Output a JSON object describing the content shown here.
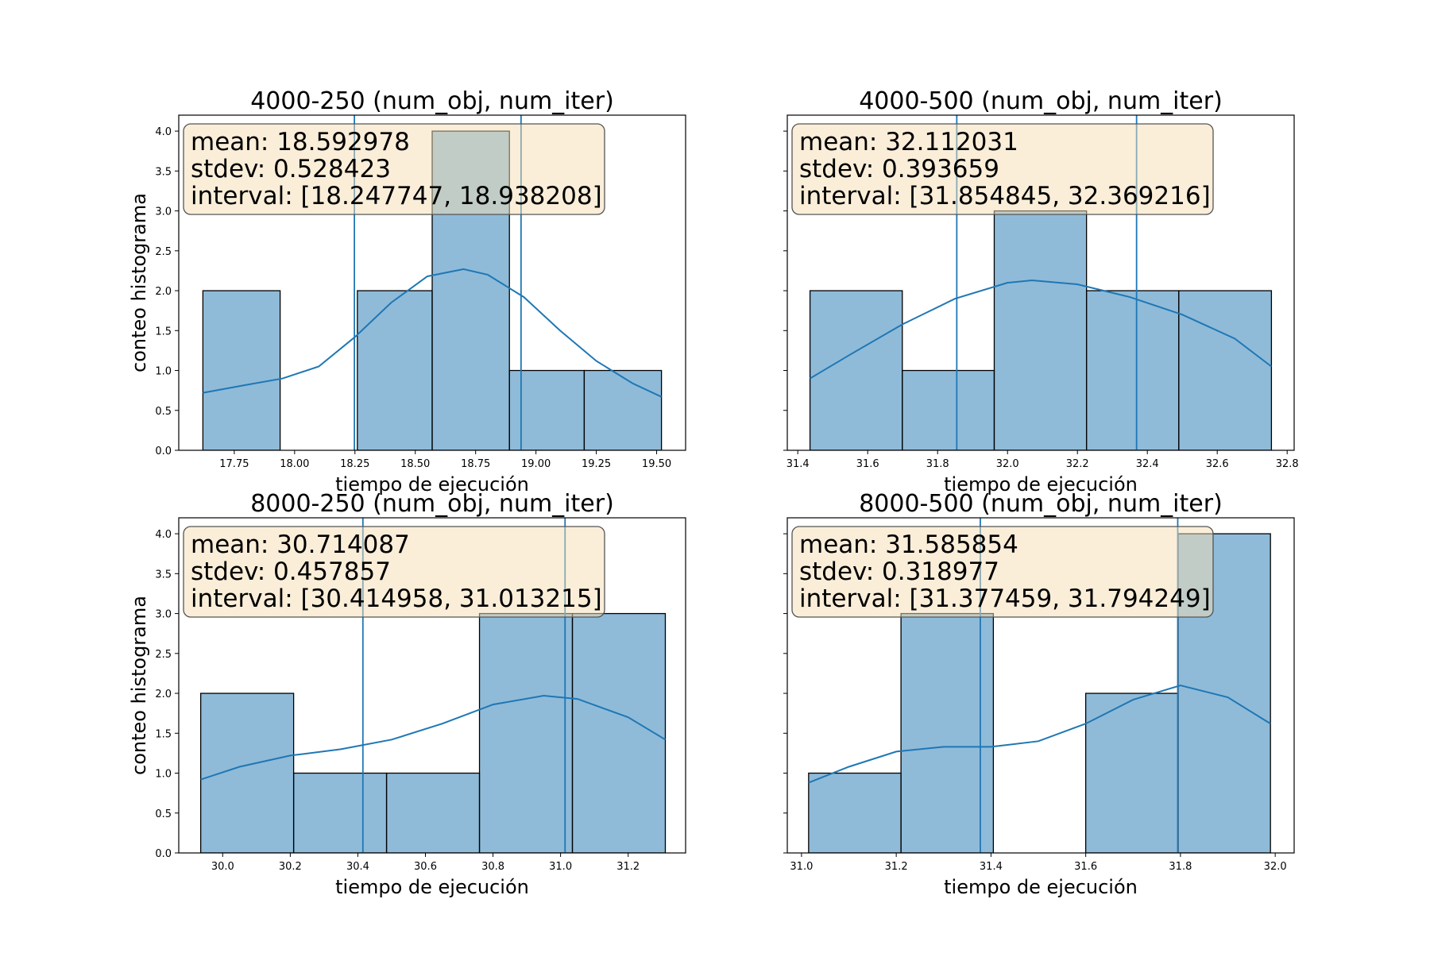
{
  "figure": {
    "shared_ylabel": "conteo histograma",
    "shared_xlabel": "tiempo de ejecución"
  },
  "colors": {
    "bar_fill": "#1f77b4",
    "bar_fill_alpha": 0.5,
    "bar_edge": "#000000",
    "kde_line": "#1f77b4",
    "interval_line": "#1f77b4",
    "stats_box_fill": "#f5deb3",
    "stats_box_alpha": 0.5,
    "stats_box_edge": "#555555"
  },
  "chart_data": [
    {
      "type": "bar",
      "title": "4000-250 (num_obj, num_iter)",
      "xlabel": "tiempo de ejecución",
      "ylabel": "conteo histograma",
      "xlim": [
        17.52,
        19.62
      ],
      "ylim": [
        0,
        4.2
      ],
      "xticks": [
        17.75,
        18.0,
        18.25,
        18.5,
        18.75,
        19.0,
        19.25,
        19.5
      ],
      "xtick_labels": [
        "17.75",
        "18.00",
        "18.25",
        "18.50",
        "18.75",
        "19.00",
        "19.25",
        "19.50"
      ],
      "yticks": [
        0.0,
        0.5,
        1.0,
        1.5,
        2.0,
        2.5,
        3.0,
        3.5,
        4.0
      ],
      "ytick_labels": [
        "0.0",
        "0.5",
        "1.0",
        "1.5",
        "2.0",
        "2.5",
        "3.0",
        "3.5",
        "4.0"
      ],
      "show_ytick_labels": true,
      "bins": [
        {
          "x0": 17.62,
          "x1": 17.94,
          "count": 2
        },
        {
          "x0": 17.94,
          "x1": 18.26,
          "count": 0
        },
        {
          "x0": 18.26,
          "x1": 18.57,
          "count": 2
        },
        {
          "x0": 18.57,
          "x1": 18.89,
          "count": 4
        },
        {
          "x0": 18.89,
          "x1": 19.2,
          "count": 1
        },
        {
          "x0": 19.2,
          "x1": 19.52,
          "count": 1
        }
      ],
      "kde": {
        "x": [
          17.62,
          17.8,
          17.95,
          18.1,
          18.25,
          18.4,
          18.55,
          18.7,
          18.8,
          18.95,
          19.1,
          19.25,
          19.4,
          19.52
        ],
        "y": [
          0.72,
          0.82,
          0.9,
          1.05,
          1.42,
          1.85,
          2.18,
          2.27,
          2.2,
          1.92,
          1.5,
          1.12,
          0.84,
          0.67
        ]
      },
      "interval_lines": [
        18.247747,
        18.938208
      ],
      "stats": {
        "mean_line": "mean: 18.592978",
        "stdev_line": "stdev: 0.528423",
        "interval_line": "interval: [18.247747, 18.938208]"
      }
    },
    {
      "type": "bar",
      "title": "4000-500 (num_obj, num_iter)",
      "xlabel": "tiempo de ejecución",
      "ylabel": "",
      "xlim": [
        31.37,
        32.82
      ],
      "ylim": [
        0,
        4.2
      ],
      "xticks": [
        31.4,
        31.6,
        31.8,
        32.0,
        32.2,
        32.4,
        32.6,
        32.8
      ],
      "xtick_labels": [
        "31.4",
        "31.6",
        "31.8",
        "32.0",
        "32.2",
        "32.4",
        "32.6",
        "32.8"
      ],
      "yticks": [
        0.0,
        0.5,
        1.0,
        1.5,
        2.0,
        2.5,
        3.0,
        3.5,
        4.0
      ],
      "ytick_labels": [],
      "show_ytick_labels": false,
      "bins": [
        {
          "x0": 31.435,
          "x1": 31.699,
          "count": 2
        },
        {
          "x0": 31.699,
          "x1": 31.962,
          "count": 1
        },
        {
          "x0": 31.962,
          "x1": 32.226,
          "count": 3
        },
        {
          "x0": 32.226,
          "x1": 32.49,
          "count": 2
        },
        {
          "x0": 32.49,
          "x1": 32.755,
          "count": 2
        }
      ],
      "kde": {
        "x": [
          31.435,
          31.55,
          31.7,
          31.85,
          32.0,
          32.07,
          32.2,
          32.35,
          32.5,
          32.65,
          32.755
        ],
        "y": [
          0.9,
          1.2,
          1.58,
          1.9,
          2.1,
          2.13,
          2.08,
          1.92,
          1.7,
          1.4,
          1.05
        ]
      },
      "interval_lines": [
        31.854845,
        32.369216
      ],
      "stats": {
        "mean_line": "mean: 32.112031",
        "stdev_line": "stdev: 0.393659",
        "interval_line": "interval: [31.854845, 32.369216]"
      }
    },
    {
      "type": "bar",
      "title": "8000-250 (num_obj, num_iter)",
      "xlabel": "tiempo de ejecución",
      "ylabel": "conteo histograma",
      "xlim": [
        29.87,
        31.37
      ],
      "ylim": [
        0,
        4.2
      ],
      "xticks": [
        30.0,
        30.2,
        30.4,
        30.6,
        30.8,
        31.0,
        31.2
      ],
      "xtick_labels": [
        "30.0",
        "30.2",
        "30.4",
        "30.6",
        "30.8",
        "31.0",
        "31.2"
      ],
      "yticks": [
        0.0,
        0.5,
        1.0,
        1.5,
        2.0,
        2.5,
        3.0,
        3.5,
        4.0
      ],
      "ytick_labels": [
        "0.0",
        "0.5",
        "1.0",
        "1.5",
        "2.0",
        "2.5",
        "3.0",
        "3.5",
        "4.0"
      ],
      "show_ytick_labels": true,
      "bins": [
        {
          "x0": 29.935,
          "x1": 30.21,
          "count": 2
        },
        {
          "x0": 30.21,
          "x1": 30.485,
          "count": 1
        },
        {
          "x0": 30.485,
          "x1": 30.76,
          "count": 1
        },
        {
          "x0": 30.76,
          "x1": 31.035,
          "count": 3
        },
        {
          "x0": 31.035,
          "x1": 31.31,
          "count": 3
        }
      ],
      "kde": {
        "x": [
          29.935,
          30.05,
          30.2,
          30.35,
          30.5,
          30.65,
          30.8,
          30.95,
          31.05,
          31.2,
          31.31
        ],
        "y": [
          0.92,
          1.08,
          1.22,
          1.3,
          1.42,
          1.62,
          1.86,
          1.97,
          1.93,
          1.7,
          1.42
        ]
      },
      "interval_lines": [
        30.414958,
        31.013215
      ],
      "stats": {
        "mean_line": "mean: 30.714087",
        "stdev_line": "stdev: 0.457857",
        "interval_line": "interval: [30.414958, 31.013215]"
      }
    },
    {
      "type": "bar",
      "title": "8000-500 (num_obj, num_iter)",
      "xlabel": "tiempo de ejecución",
      "ylabel": "",
      "xlim": [
        30.97,
        32.04
      ],
      "ylim": [
        0,
        4.2
      ],
      "xticks": [
        31.0,
        31.2,
        31.4,
        31.6,
        31.8,
        32.0
      ],
      "xtick_labels": [
        "31.0",
        "31.2",
        "31.4",
        "31.6",
        "31.8",
        "32.0"
      ],
      "yticks": [
        0.0,
        0.5,
        1.0,
        1.5,
        2.0,
        2.5,
        3.0,
        3.5,
        4.0
      ],
      "ytick_labels": [],
      "show_ytick_labels": false,
      "bins": [
        {
          "x0": 31.015,
          "x1": 31.21,
          "count": 1
        },
        {
          "x0": 31.21,
          "x1": 31.405,
          "count": 3
        },
        {
          "x0": 31.405,
          "x1": 31.6,
          "count": 0
        },
        {
          "x0": 31.6,
          "x1": 31.795,
          "count": 2
        },
        {
          "x0": 31.795,
          "x1": 31.99,
          "count": 4
        }
      ],
      "kde": {
        "x": [
          31.015,
          31.1,
          31.2,
          31.3,
          31.4,
          31.5,
          31.6,
          31.7,
          31.8,
          31.9,
          31.99
        ],
        "y": [
          0.88,
          1.08,
          1.27,
          1.33,
          1.33,
          1.4,
          1.62,
          1.92,
          2.1,
          1.95,
          1.62
        ]
      },
      "interval_lines": [
        31.377459,
        31.794249
      ],
      "stats": {
        "mean_line": "mean: 31.585854",
        "stdev_line": "stdev: 0.318977",
        "interval_line": "interval: [31.377459, 31.794249]"
      }
    }
  ]
}
